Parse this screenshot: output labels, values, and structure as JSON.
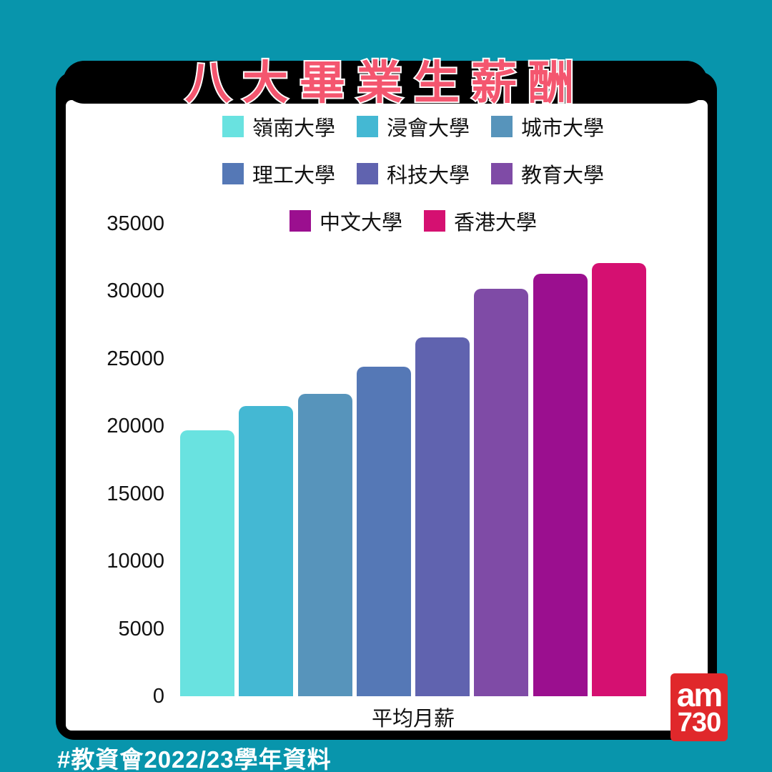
{
  "page": {
    "title": "八大畢業生薪酬",
    "footer": "#教資會2022/23學年資料",
    "logo": {
      "line1": "am",
      "line2": "730"
    }
  },
  "colors": {
    "background": "#0895AC",
    "frame": "#000000",
    "card": "#FFFFFF",
    "title_pink": "#F4566F",
    "logo_red": "#E0282B",
    "text": "#111111"
  },
  "chart_data": {
    "type": "bar",
    "title": "八大畢業生薪酬",
    "xlabel": "平均月薪",
    "ylabel": "",
    "ylim": [
      0,
      35000
    ],
    "yticks": [
      0,
      5000,
      10000,
      15000,
      20000,
      25000,
      30000,
      35000
    ],
    "grid": false,
    "legend_position": "top",
    "legend_rows": [
      3,
      3,
      2
    ],
    "categories": [
      "嶺南大學",
      "浸會大學",
      "城市大學",
      "理工大學",
      "科技大學",
      "教育大學",
      "中文大學",
      "香港大學"
    ],
    "values": [
      19700,
      21500,
      22400,
      24400,
      26600,
      30200,
      31300,
      32100
    ],
    "bar_colors": [
      "#69E2E0",
      "#44B8D3",
      "#5794BB",
      "#5578B6",
      "#6063AF",
      "#7F4BA6",
      "#9B0F8F",
      "#D51071"
    ]
  }
}
